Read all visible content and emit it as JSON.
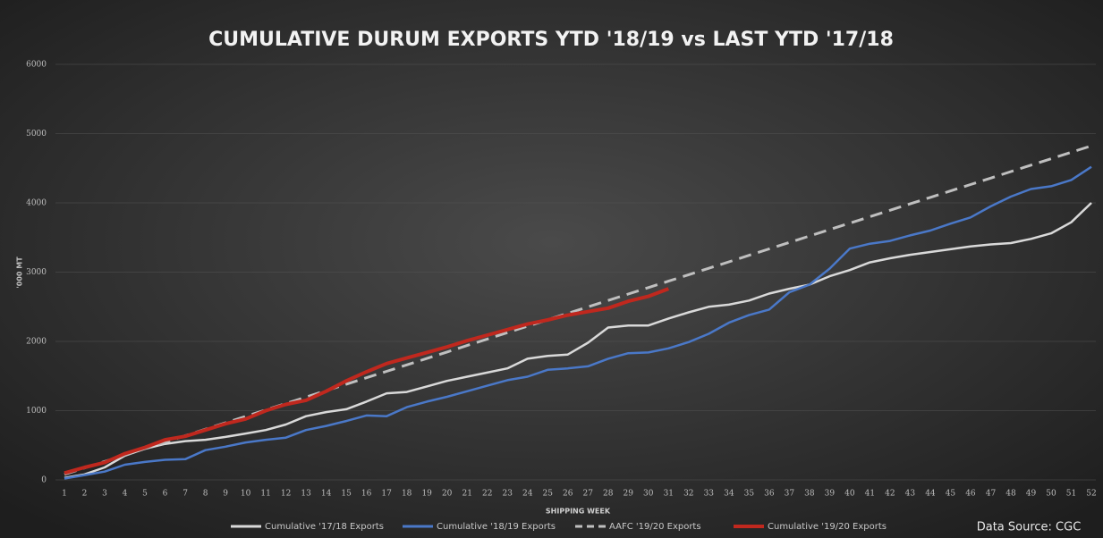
{
  "chart_data": {
    "type": "line",
    "title": "CUMULATIVE DURUM EXPORTS YTD '18/19 vs LAST YTD '17/18",
    "x_label": "SHIPPING WEEK",
    "y_label": "'000 MT",
    "annotation": "Data Source: CGC",
    "categories": [
      1,
      2,
      3,
      4,
      5,
      6,
      7,
      8,
      9,
      10,
      11,
      12,
      13,
      14,
      15,
      16,
      17,
      18,
      19,
      20,
      21,
      22,
      23,
      24,
      25,
      26,
      27,
      28,
      29,
      30,
      31,
      32,
      33,
      34,
      35,
      36,
      37,
      38,
      39,
      40,
      41,
      42,
      43,
      44,
      45,
      46,
      47,
      48,
      49,
      50,
      51,
      52
    ],
    "ylim": [
      0,
      6000
    ],
    "yticks": [
      0,
      1000,
      2000,
      3000,
      4000,
      5000,
      6000
    ],
    "legend": "bottom",
    "series": [
      {
        "name": "Cumulative '17/18 Exports",
        "color": "#d9d9d9",
        "values": [
          30,
          80,
          180,
          350,
          450,
          520,
          560,
          580,
          620,
          670,
          720,
          800,
          920,
          980,
          1020,
          1130,
          1250,
          1270,
          1350,
          1430,
          1490,
          1550,
          1610,
          1750,
          1790,
          1810,
          1980,
          2200,
          2230,
          2230,
          2330,
          2420,
          2500,
          2530,
          2590,
          2690,
          2760,
          2820,
          2940,
          3030,
          3140,
          3200,
          3250,
          3290,
          3330,
          3370,
          3400,
          3420,
          3480,
          3560,
          3720,
          4000
        ]
      },
      {
        "name": "Cumulative '18/19 Exports",
        "color": "#4a78c8",
        "values": [
          20,
          70,
          120,
          220,
          260,
          290,
          300,
          430,
          480,
          540,
          580,
          610,
          720,
          780,
          850,
          930,
          920,
          1050,
          1130,
          1200,
          1280,
          1360,
          1440,
          1490,
          1590,
          1610,
          1640,
          1750,
          1830,
          1840,
          1900,
          1990,
          2110,
          2270,
          2380,
          2460,
          2710,
          2820,
          3050,
          3340,
          3410,
          3450,
          3530,
          3600,
          3700,
          3790,
          3950,
          4090,
          4200,
          4240,
          4330,
          4520
        ]
      },
      {
        "name": "AAFC '19/20 Exports",
        "color": "#bfbfbf",
        "dashed": true,
        "values": [
          80,
          173,
          266,
          359,
          452,
          545,
          638,
          731,
          824,
          917,
          1010,
          1103,
          1196,
          1289,
          1382,
          1475,
          1568,
          1661,
          1754,
          1847,
          1940,
          2033,
          2126,
          2219,
          2312,
          2405,
          2498,
          2591,
          2684,
          2777,
          2870,
          2963,
          3056,
          3149,
          3242,
          3335,
          3428,
          3521,
          3614,
          3707,
          3800,
          3893,
          3986,
          4079,
          4172,
          4265,
          4358,
          4451,
          4544,
          4637,
          4730,
          4823
        ]
      },
      {
        "name": "Cumulative '19/20 Exports",
        "color": "#c0281e",
        "values": [
          100,
          180,
          250,
          380,
          470,
          580,
          630,
          720,
          810,
          880,
          1000,
          1090,
          1150,
          1280,
          1430,
          1560,
          1680,
          1760,
          1840,
          1920,
          2010,
          2090,
          2170,
          2250,
          2310,
          2380,
          2430,
          2480,
          2580,
          2650,
          2760,
          null,
          null,
          null,
          null,
          null,
          null,
          null,
          null,
          null,
          null,
          null,
          null,
          null,
          null,
          null,
          null,
          null,
          null,
          null,
          null,
          null
        ]
      }
    ]
  }
}
